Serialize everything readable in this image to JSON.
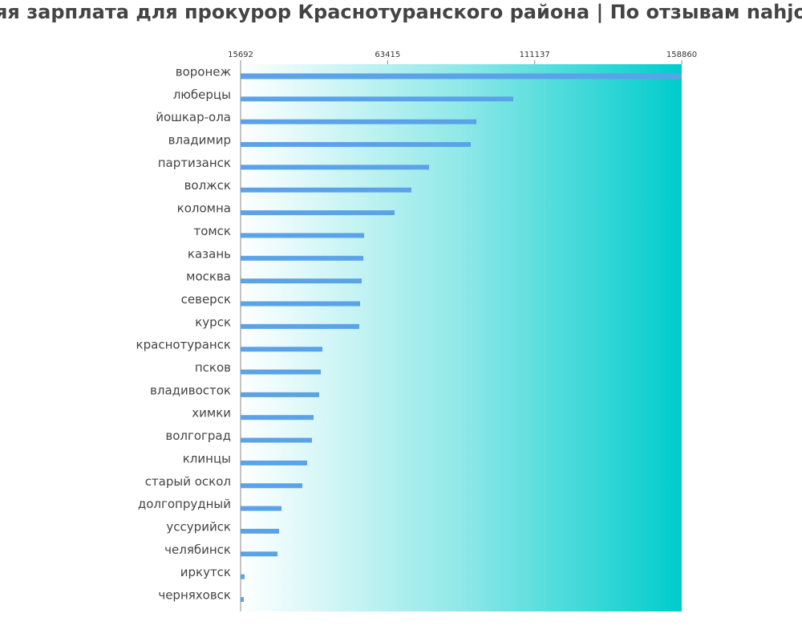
{
  "chart_data": {
    "type": "bar",
    "orientation": "horizontal",
    "title": "яя зарплата для прокурор Краснотуранского района | По отзывам nahjo",
    "categories": [
      "воронеж",
      "люберцы",
      "йошкар-ола",
      "владимир",
      "партизанск",
      "волжск",
      "коломна",
      "томск",
      "казань",
      "москва",
      "северск",
      "курск",
      "краснотуранск",
      "псков",
      "владивосток",
      "химки",
      "волгоград",
      "клинцы",
      "старый оскол",
      "долгопрудный",
      "уссурийск",
      "челябинск",
      "иркутск",
      "черняховск"
    ],
    "values": [
      158860,
      104194,
      92220,
      90398,
      76863,
      71136,
      65670,
      55778,
      55518,
      54997,
      54477,
      54216,
      42243,
      41722,
      41201,
      39379,
      38859,
      37297,
      35735,
      28967,
      28186,
      27666,
      16994,
      16733
    ],
    "color": "#5ba3e8",
    "xlim": [
      15692,
      158860
    ],
    "xticks": [
      15692,
      63415,
      111137,
      158860
    ]
  }
}
